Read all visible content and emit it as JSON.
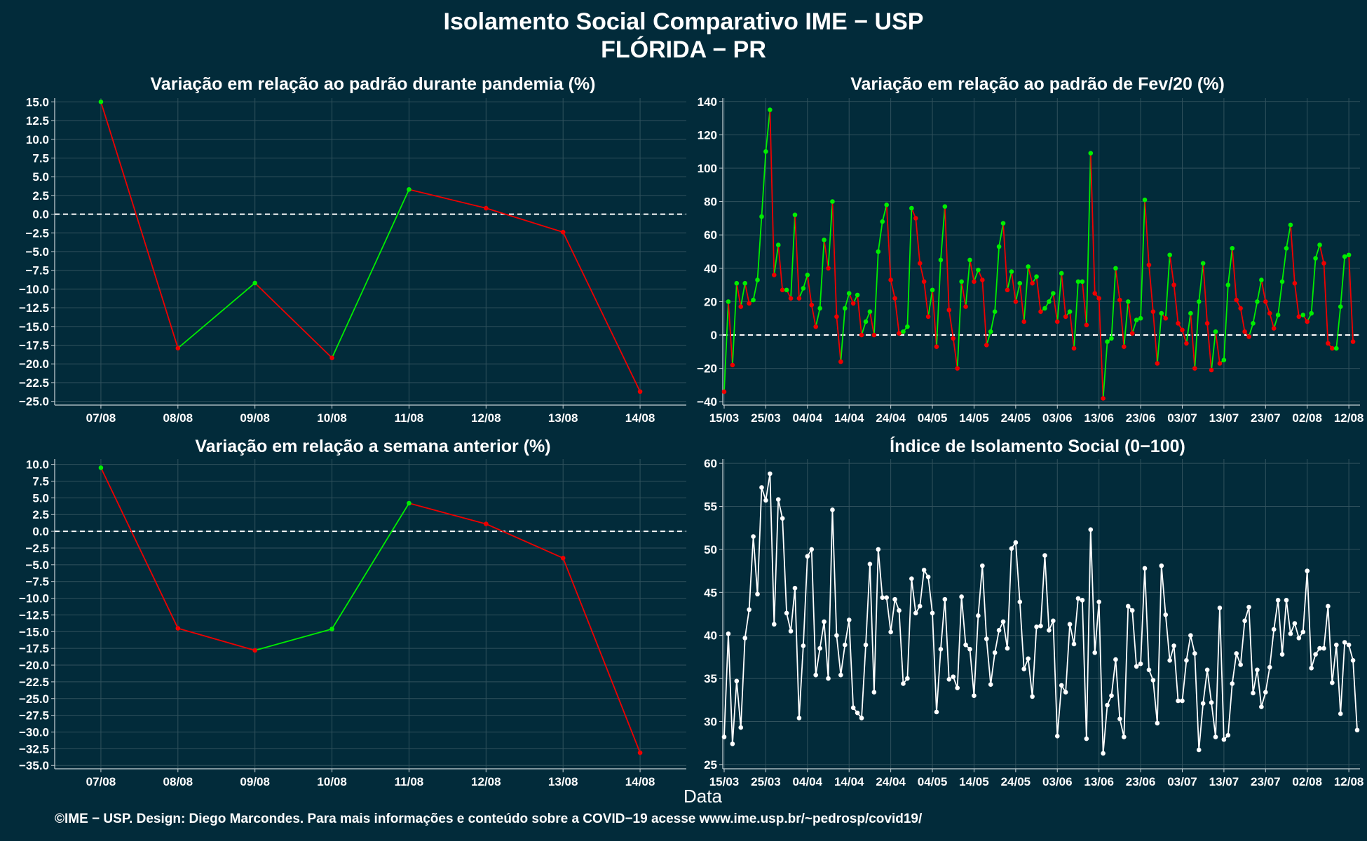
{
  "header": {
    "title": "Isolamento Social Comparativo IME − USP",
    "subtitle": "FLÓRIDA − PR"
  },
  "x_axis_label": "Data",
  "footer": "©IME − USP. Design: Diego Marcondes. Para mais informações e conteúdo sobre a COVID−19 acesse www.ime.usp.br/~pedrosp/covid19/",
  "colors": {
    "background": "#022b3a",
    "positive": "#00ee00",
    "negative": "#ee0000",
    "index_line": "#ffffff",
    "grid": "#31525d",
    "axis_text": "#ffffff"
  },
  "chart_data": [
    {
      "type": "line",
      "title": "Variação em relação ao padrão durante pandemia (%)",
      "categories": [
        "07/08",
        "08/08",
        "09/08",
        "10/08",
        "11/08",
        "12/08",
        "13/08",
        "14/08"
      ],
      "values": [
        15.0,
        -17.9,
        -9.2,
        -19.2,
        3.3,
        0.8,
        -2.4,
        -23.7
      ],
      "ylim": [
        -25.5,
        15.5
      ],
      "yticks": [
        15.0,
        12.5,
        10.0,
        7.5,
        5.0,
        2.5,
        0.0,
        -2.5,
        -5.0,
        -7.5,
        -10.0,
        -12.5,
        -15.0,
        -17.5,
        -20.0,
        -22.5,
        -25.0
      ],
      "zero_line": "dashed",
      "coloring": "green when increasing, red when decreasing"
    },
    {
      "type": "line",
      "title": "Variação em relação ao padrão de Fev/20 (%)",
      "x_ticks": [
        "15/03",
        "25/03",
        "04/04",
        "14/04",
        "24/04",
        "04/05",
        "14/05",
        "24/05",
        "03/06",
        "13/06",
        "23/06",
        "03/07",
        "13/07",
        "23/07",
        "02/08",
        "12/08"
      ],
      "x_start": "15/03",
      "x_end": "14/08",
      "values": [
        -34,
        20,
        -18,
        31,
        17,
        31,
        19,
        21,
        33,
        71,
        110,
        135,
        36,
        54,
        27,
        27,
        22,
        72,
        22,
        28,
        36,
        18,
        5,
        16,
        57,
        40,
        80,
        11,
        -16,
        16,
        25,
        19,
        24,
        0,
        8,
        14,
        0,
        50,
        68,
        78,
        33,
        22,
        1,
        2,
        5,
        76,
        70,
        43,
        32,
        11,
        27,
        -7,
        45,
        77,
        15,
        -2,
        -20,
        32,
        17,
        45,
        32,
        39,
        33,
        -6,
        2,
        14,
        53,
        67,
        27,
        38,
        20,
        31,
        8,
        41,
        31,
        35,
        14,
        16,
        20,
        25,
        8,
        37,
        11,
        14,
        -8,
        32,
        32,
        6,
        109,
        25,
        22,
        -38,
        -4,
        -2,
        40,
        21,
        -7,
        20,
        1,
        9,
        10,
        81,
        42,
        14,
        -17,
        13,
        10,
        48,
        30,
        7,
        3,
        -5,
        13,
        -20,
        20,
        43,
        7,
        -21,
        2,
        -17,
        -15,
        30,
        52,
        21,
        16,
        2,
        -1,
        7,
        20,
        33,
        20,
        13,
        4,
        12,
        32,
        52,
        66,
        31,
        11,
        12,
        8,
        13,
        46,
        54,
        43,
        -5,
        -8,
        -8,
        17,
        47,
        48,
        -4
      ],
      "ylim": [
        -42,
        142
      ],
      "yticks": [
        140,
        120,
        100,
        80,
        60,
        40,
        20,
        0,
        -20,
        -40
      ],
      "zero_line": "dashed",
      "coloring": "green when increasing, red when decreasing"
    },
    {
      "type": "line",
      "title": "Variação em relação a semana anterior (%)",
      "categories": [
        "07/08",
        "08/08",
        "09/08",
        "10/08",
        "11/08",
        "12/08",
        "13/08",
        "14/08"
      ],
      "values": [
        9.5,
        -14.5,
        -17.8,
        -14.6,
        4.2,
        1.1,
        -4.0,
        -33.1
      ],
      "ylim": [
        -35.5,
        10.8
      ],
      "yticks": [
        10.0,
        7.5,
        5.0,
        2.5,
        0.0,
        -2.5,
        -5.0,
        -7.5,
        -10.0,
        -12.5,
        -15.0,
        -17.5,
        -20.0,
        -22.5,
        -25.0,
        -27.5,
        -30.0,
        -32.5,
        -35.0
      ],
      "zero_line": "dashed",
      "coloring": "green when increasing, red when decreasing"
    },
    {
      "type": "line",
      "title": "Índice de Isolamento Social (0−100)",
      "x_ticks": [
        "15/03",
        "25/03",
        "04/04",
        "14/04",
        "24/04",
        "04/05",
        "14/05",
        "24/05",
        "03/06",
        "13/06",
        "23/06",
        "03/07",
        "13/07",
        "23/07",
        "02/08",
        "12/08"
      ],
      "x_start": "15/03",
      "x_end": "14/08",
      "values": [
        28.2,
        40.2,
        27.4,
        34.7,
        29.3,
        39.7,
        43.0,
        51.5,
        44.8,
        57.2,
        55.7,
        58.8,
        41.3,
        55.8,
        53.6,
        42.6,
        40.5,
        45.5,
        30.4,
        38.8,
        49.2,
        50.0,
        35.4,
        38.5,
        41.6,
        35.0,
        54.6,
        40.0,
        35.4,
        38.9,
        41.8,
        31.6,
        31.0,
        30.4,
        38.9,
        48.3,
        33.4,
        50.0,
        44.4,
        44.4,
        40.4,
        44.2,
        42.9,
        34.4,
        35.0,
        46.6,
        42.6,
        43.4,
        47.6,
        46.8,
        42.6,
        31.1,
        38.4,
        44.2,
        34.9,
        35.2,
        33.9,
        44.5,
        38.9,
        38.4,
        33.0,
        42.3,
        48.1,
        39.6,
        34.3,
        38.0,
        40.6,
        41.6,
        38.5,
        50.1,
        50.8,
        43.9,
        36.1,
        37.3,
        32.9,
        41.0,
        41.1,
        49.3,
        40.6,
        41.7,
        28.3,
        34.2,
        33.4,
        41.3,
        39.0,
        44.3,
        44.1,
        28.0,
        52.3,
        38.0,
        43.9,
        26.3,
        31.9,
        33.0,
        37.2,
        30.3,
        28.2,
        43.4,
        42.9,
        36.4,
        36.7,
        47.8,
        36.0,
        34.8,
        29.8,
        48.1,
        42.4,
        37.1,
        38.8,
        32.4,
        32.4,
        37.1,
        40.0,
        37.9,
        26.7,
        32.1,
        36.0,
        32.2,
        28.2,
        43.2,
        27.9,
        28.4,
        34.4,
        37.9,
        36.6,
        41.7,
        43.3,
        33.3,
        36.0,
        31.7,
        33.4,
        36.3,
        40.7,
        44.1,
        37.8,
        44.1,
        40.2,
        41.4,
        39.7,
        40.4,
        47.5,
        36.2,
        37.8,
        38.5,
        38.5,
        43.4,
        34.5,
        38.9,
        30.9,
        39.2,
        38.9,
        37.1,
        29.0
      ],
      "ylim": [
        24.5,
        60.5
      ],
      "yticks": [
        60,
        55,
        50,
        45,
        40,
        35,
        30,
        25
      ],
      "point_color": "#ffffff"
    }
  ]
}
